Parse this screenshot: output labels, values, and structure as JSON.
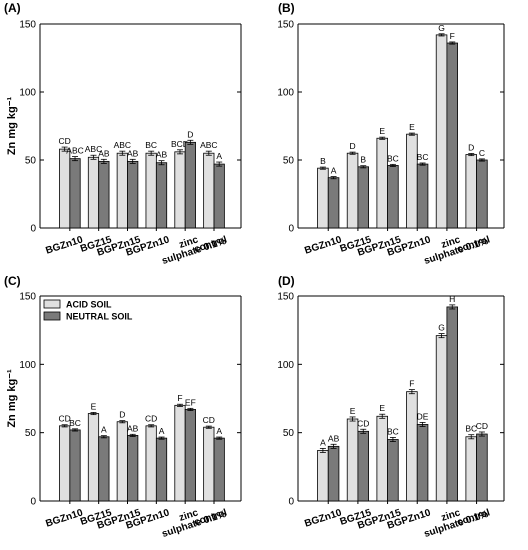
{
  "chart_data": [
    {
      "panel": "(A)",
      "type": "bar",
      "ylabel": "Zn mg kg⁻¹",
      "ylim": [
        0,
        150
      ],
      "yticks": [
        0,
        50,
        100,
        150
      ],
      "categories": [
        "BGZn10",
        "BGZ15",
        "BGPZn15",
        "BGPZn10",
        "zinc sulphate 0.1%",
        "control"
      ],
      "series": [
        {
          "values": [
            58,
            52,
            55,
            55,
            56,
            55
          ],
          "errors": [
            1.5,
            1.5,
            1.5,
            1.5,
            1.5,
            1.5
          ],
          "labels": [
            "CD",
            "ABC",
            "ABC",
            "BC",
            "BCD",
            "ABC"
          ],
          "color": "#e0e0e0"
        },
        {
          "values": [
            51,
            49,
            49,
            48,
            63,
            47
          ],
          "errors": [
            1.5,
            1.5,
            1.5,
            1.5,
            1.5,
            1.5
          ],
          "labels": [
            "ABC",
            "AB",
            "AB",
            "AB",
            "D",
            "A"
          ],
          "color": "#7a7a7a"
        }
      ]
    },
    {
      "panel": "(B)",
      "type": "bar",
      "ylabel": "",
      "ylim": [
        0,
        150
      ],
      "yticks": [
        0,
        50,
        100,
        150
      ],
      "categories": [
        "BGZn10",
        "BGZ15",
        "BGPZn15",
        "BGPZn10",
        "zinc sulphate 0.1%",
        "control"
      ],
      "series": [
        {
          "values": [
            44,
            55,
            66,
            69,
            142,
            54
          ],
          "errors": [
            0.8,
            0.8,
            0.8,
            0.8,
            0.8,
            0.8
          ],
          "labels": [
            "B",
            "D",
            "E",
            "E",
            "G",
            "D"
          ],
          "color": "#e0e0e0"
        },
        {
          "values": [
            37,
            45,
            46,
            47,
            136,
            50
          ],
          "errors": [
            0.8,
            0.8,
            0.8,
            0.8,
            0.8,
            0.8
          ],
          "labels": [
            "A",
            "B",
            "BC",
            "BC",
            "F",
            "C"
          ],
          "color": "#7a7a7a"
        }
      ]
    },
    {
      "panel": "(C)",
      "type": "bar",
      "ylabel": "Zn mg kg⁻¹",
      "ylim": [
        0,
        150
      ],
      "yticks": [
        0,
        50,
        100,
        150
      ],
      "legend": [
        "ACID SOIL",
        "NEUTRAL SOIL"
      ],
      "categories": [
        "BGZn10",
        "BGZ15",
        "BGPZn15",
        "BGPZn10",
        "zinc sulphate 0.1%",
        "control"
      ],
      "series": [
        {
          "name": "ACID SOIL",
          "values": [
            55,
            64,
            58,
            55,
            70,
            54
          ],
          "errors": [
            0.8,
            0.8,
            0.8,
            0.8,
            0.8,
            0.8
          ],
          "labels": [
            "CD",
            "E",
            "D",
            "CD",
            "F",
            "CD"
          ],
          "color": "#e0e0e0"
        },
        {
          "name": "NEUTRAL SOIL",
          "values": [
            52,
            47,
            48,
            46,
            67,
            46
          ],
          "errors": [
            0.8,
            0.8,
            0.8,
            0.8,
            0.8,
            0.8
          ],
          "labels": [
            "BC",
            "A",
            "AB",
            "A",
            "EF",
            "A"
          ],
          "color": "#7a7a7a"
        }
      ]
    },
    {
      "panel": "(D)",
      "type": "bar",
      "ylabel": "",
      "ylim": [
        0,
        150
      ],
      "yticks": [
        0,
        50,
        100,
        150
      ],
      "categories": [
        "BGZn10",
        "BGZ15",
        "BGPZn15",
        "BGPZn10",
        "zinc sulphate 0.1%",
        "control"
      ],
      "series": [
        {
          "values": [
            37,
            60,
            62,
            80,
            121,
            47
          ],
          "errors": [
            1.5,
            1.5,
            1.5,
            1.5,
            1.5,
            1.5
          ],
          "labels": [
            "A",
            "E",
            "E",
            "F",
            "G",
            "BC"
          ],
          "color": "#e0e0e0"
        },
        {
          "values": [
            40,
            51,
            45,
            56,
            142,
            49
          ],
          "errors": [
            1.5,
            1.5,
            1.5,
            1.5,
            1.5,
            1.5
          ],
          "labels": [
            "AB",
            "CD",
            "BC",
            "DE",
            "H",
            "CD"
          ],
          "color": "#7a7a7a"
        }
      ]
    }
  ]
}
